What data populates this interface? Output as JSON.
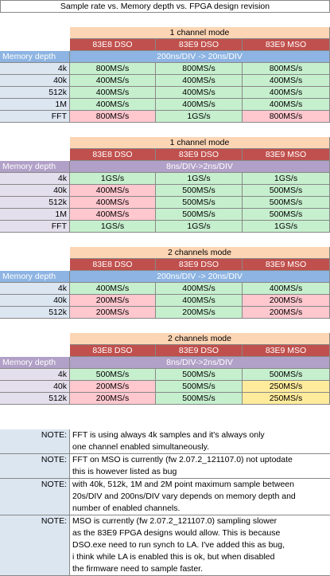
{
  "title": "Sample rate vs. Memory depth vs. FPGA design revision",
  "colors": {
    "orange_header": "#fcd5b4",
    "red_header": "#c0504d",
    "blue_memdepth": "#8db4e2",
    "purple_memdepth": "#b1a0c7",
    "good": "#c6efce",
    "bad": "#ffc7ce",
    "warn": "#ffeb9c"
  },
  "tables": [
    {
      "mode": "1 channel mode",
      "columns": [
        "83E8 DSO",
        "83E9 DSO",
        "83E9 MSO"
      ],
      "memdepth_label": "Memory depth",
      "timebase": "200ns/DIV -> 20ns/DIV",
      "theme": "blue",
      "rows": [
        {
          "label": "4k",
          "values": [
            "800MS/s",
            "800MS/s",
            "800MS/s"
          ],
          "status": [
            "g",
            "g",
            "g"
          ]
        },
        {
          "label": "40k",
          "values": [
            "400MS/s",
            "400MS/s",
            "400MS/s"
          ],
          "status": [
            "g",
            "g",
            "g"
          ]
        },
        {
          "label": "512k",
          "values": [
            "400MS/s",
            "400MS/s",
            "400MS/s"
          ],
          "status": [
            "g",
            "g",
            "g"
          ]
        },
        {
          "label": "1M",
          "values": [
            "400MS/s",
            "400MS/s",
            "400MS/s"
          ],
          "status": [
            "g",
            "g",
            "g"
          ]
        },
        {
          "label": "FFT",
          "values": [
            "800MS/s",
            "1GS/s",
            "800MS/s"
          ],
          "status": [
            "p",
            "g",
            "p"
          ]
        }
      ]
    },
    {
      "mode": "1 channel mode",
      "columns": [
        "83E8 DSO",
        "83E9 DSO",
        "83E9 MSO"
      ],
      "memdepth_label": "Memory depth",
      "timebase": "8ns/DIV->2ns/DIV",
      "theme": "purple",
      "rows": [
        {
          "label": "4k",
          "values": [
            "1GS/s",
            "1GS/s",
            "1GS/s"
          ],
          "status": [
            "g",
            "g",
            "g"
          ]
        },
        {
          "label": "40k",
          "values": [
            "400MS/s",
            "500MS/s",
            "500MS/s"
          ],
          "status": [
            "p",
            "g",
            "g"
          ]
        },
        {
          "label": "512k",
          "values": [
            "400MS/s",
            "500MS/s",
            "500MS/s"
          ],
          "status": [
            "p",
            "g",
            "g"
          ]
        },
        {
          "label": "1M",
          "values": [
            "400MS/s",
            "500MS/s",
            "500MS/s"
          ],
          "status": [
            "p",
            "g",
            "g"
          ]
        },
        {
          "label": "FFT",
          "values": [
            "1GS/s",
            "1GS/s",
            "1GS/s"
          ],
          "status": [
            "g",
            "g",
            "g"
          ]
        }
      ]
    },
    {
      "mode": "2 channels mode",
      "columns": [
        "83E8 DSO",
        "83E9 DSO",
        "83E9 MSO"
      ],
      "memdepth_label": "Memory depth",
      "timebase": "200ns/DIV -> 20ns/DIV",
      "theme": "blue",
      "rows": [
        {
          "label": "4k",
          "values": [
            "400MS/s",
            "400MS/s",
            "400MS/s"
          ],
          "status": [
            "g",
            "g",
            "g"
          ]
        },
        {
          "label": "40k",
          "values": [
            "200MS/s",
            "400MS/s",
            "200MS/s"
          ],
          "status": [
            "p",
            "g",
            "p"
          ]
        },
        {
          "label": "512k",
          "values": [
            "200MS/s",
            "200MS/s",
            "200MS/s"
          ],
          "status": [
            "p",
            "g",
            "p"
          ]
        }
      ]
    },
    {
      "mode": "2 channels mode",
      "columns": [
        "83E8 DSO",
        "83E9 DSO",
        "83E9 MSO"
      ],
      "memdepth_label": "Memory depth",
      "timebase": "8ns/DIV->2ns/DIV",
      "theme": "purple",
      "rows": [
        {
          "label": "4k",
          "values": [
            "500MS/s",
            "500MS/s",
            "500MS/s"
          ],
          "status": [
            "g",
            "g",
            "g"
          ]
        },
        {
          "label": "40k",
          "values": [
            "200MS/s",
            "500MS/s",
            "250MS/s"
          ],
          "status": [
            "p",
            "g",
            "y"
          ]
        },
        {
          "label": "512k",
          "values": [
            "200MS/s",
            "500MS/s",
            "250MS/s"
          ],
          "status": [
            "p",
            "g",
            "y"
          ]
        }
      ]
    }
  ],
  "notes": [
    {
      "label": "NOTE:",
      "lines": [
        "FFT is using always 4k samples and it's always only",
        "one channel enabled simultaneously."
      ]
    },
    {
      "label": "NOTE:",
      "lines": [
        "FFT on MSO is currently (fw 2.07.2_121107.0) not uptodate",
        "this is however listed as bug"
      ]
    },
    {
      "label": "NOTE:",
      "lines": [
        "with 40k, 512k, 1M and 2M point maximum sample between",
        "20s/DIV and 200ns/DIV vary depends on memory depth and",
        "number of enabled channels."
      ]
    },
    {
      "label": "NOTE:",
      "lines": [
        "MSO is currently (fw 2.07.2_121107.0) sampling slower",
        "as the 83E9 FPGA designs would allow. This is because",
        "DSO.exe need to run synch to LA. I've added this as bug,",
        "i think while LA is enabled this is ok, but when disabled",
        "the firmware need to sample faster."
      ]
    }
  ]
}
